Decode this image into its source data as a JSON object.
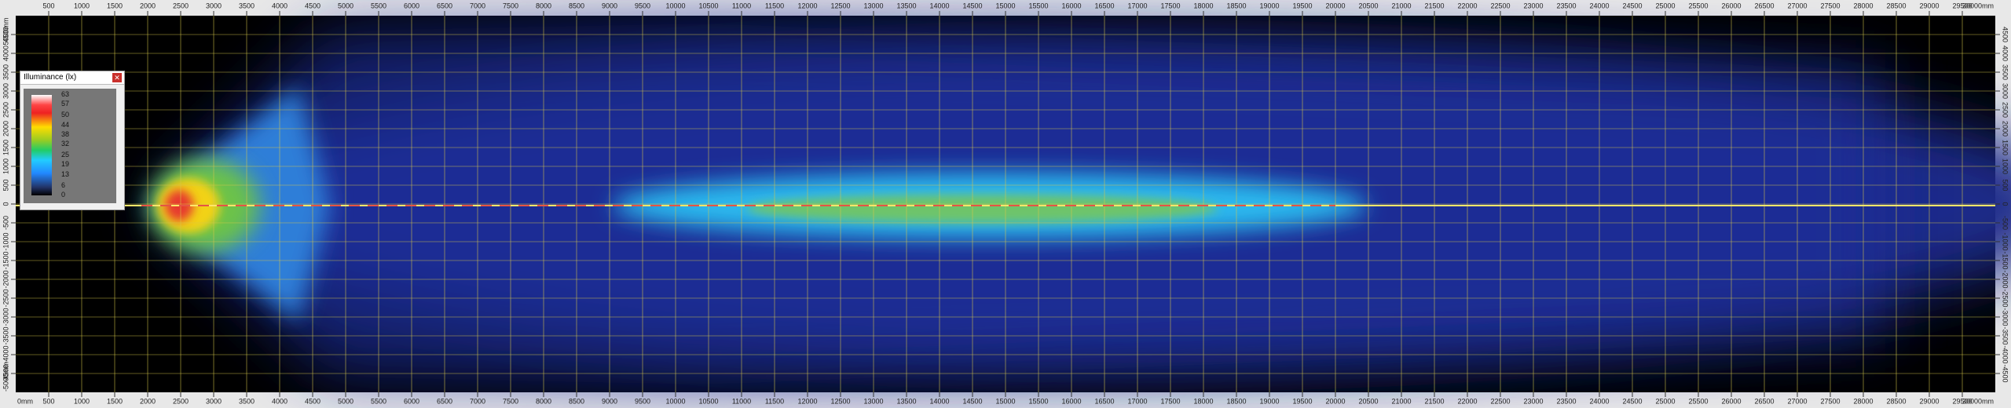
{
  "x_ruler": {
    "start_label": "0mm",
    "end_label": "30000mm",
    "ticks": [
      500,
      1000,
      1500,
      2000,
      2500,
      3000,
      3500,
      4000,
      4500,
      5000,
      5500,
      6000,
      6500,
      7000,
      7500,
      8000,
      8500,
      9000,
      9500,
      10000,
      10500,
      11000,
      11500,
      12000,
      12500,
      13000,
      13500,
      14000,
      14500,
      15000,
      15500,
      16000,
      16500,
      17000,
      17500,
      18000,
      18500,
      19000,
      19500,
      20000,
      20500,
      21000,
      21500,
      22000,
      22500,
      23000,
      23500,
      24000,
      24500,
      25000,
      25500,
      26000,
      26500,
      27000,
      27500,
      28000,
      28500,
      29000,
      29500
    ]
  },
  "y_ruler": {
    "top_label": "5000mm",
    "bottom_label": "-5000mm",
    "ticks": [
      4500,
      4000,
      3500,
      3000,
      2500,
      2000,
      1500,
      1000,
      500,
      0,
      -500,
      -1000,
      -1500,
      -2000,
      -2500,
      -3000,
      -3500,
      -4000,
      -4500
    ]
  },
  "legend": {
    "title": "Illuminance (lx)",
    "levels": [
      63,
      57,
      50,
      44,
      38,
      32,
      25,
      19,
      13,
      6,
      0
    ]
  }
}
